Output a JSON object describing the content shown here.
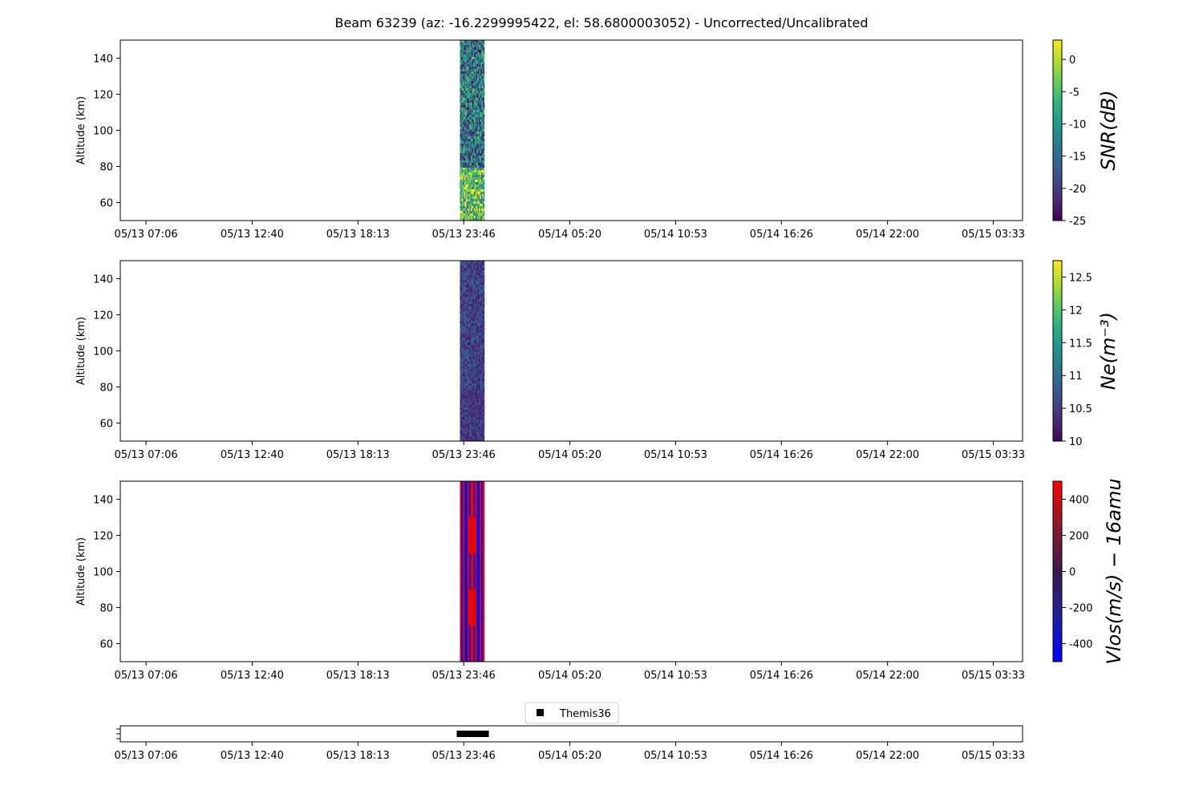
{
  "title": "Beam 63239 (az: -16.2299995422, el: 58.6800003052) - Uncorrected/Uncalibrated",
  "colors": {
    "background": "#ffffff",
    "axis": "#000000",
    "viridis": [
      "#440154",
      "#482878",
      "#3e4989",
      "#31688e",
      "#26828e",
      "#1f9e89",
      "#35b779",
      "#6ece58",
      "#b5de2b",
      "#fde725"
    ],
    "bwr_like": [
      "#0000ff",
      "#1f1f9e",
      "#3a1a4a",
      "#8a1a2a",
      "#ff0000"
    ]
  },
  "chart_data": [
    {
      "type": "heatmap",
      "name": "snr",
      "ylabel": "Altitude (km)",
      "ylim": [
        50,
        150
      ],
      "yticks": [
        60,
        80,
        100,
        120,
        140
      ],
      "xlim": [
        "05/13 05:45",
        "05/15 05:05"
      ],
      "xtick_labels": [
        "05/13 07:06",
        "05/13 12:40",
        "05/13 18:13",
        "05/13 23:46",
        "05/14 05:20",
        "05/14 10:53",
        "05/14 16:26",
        "05/14 22:00",
        "05/15 03:33"
      ],
      "data_time_range": [
        "05/13 23:34",
        "05/14 00:51"
      ],
      "colormap": "viridis",
      "colorbar_label": "SNR(dB)",
      "colorbar_range": [
        -25,
        3
      ],
      "colorbar_ticks": [
        0,
        -5,
        -10,
        -15,
        -20,
        -25
      ],
      "value_range": [
        -25,
        3
      ]
    },
    {
      "type": "heatmap",
      "name": "ne",
      "ylabel": "Altitude (km)",
      "ylim": [
        50,
        150
      ],
      "yticks": [
        60,
        80,
        100,
        120,
        140
      ],
      "xlim": [
        "05/13 05:45",
        "05/15 05:05"
      ],
      "xtick_labels": [
        "05/13 07:06",
        "05/13 12:40",
        "05/13 18:13",
        "05/13 23:46",
        "05/14 05:20",
        "05/14 10:53",
        "05/14 16:26",
        "05/14 22:00",
        "05/15 03:33"
      ],
      "data_time_range": [
        "05/13 23:34",
        "05/14 00:51"
      ],
      "colormap": "viridis",
      "colorbar_label": "Ne(m⁻³)",
      "colorbar_range": [
        10.0,
        12.75
      ],
      "colorbar_ticks": [
        12.5,
        12.0,
        11.5,
        11.0,
        10.5,
        10.0
      ],
      "value_range": [
        10.0,
        11.2
      ]
    },
    {
      "type": "heatmap",
      "name": "vlos",
      "ylabel": "Altitude (km)",
      "ylim": [
        50,
        150
      ],
      "yticks": [
        60,
        80,
        100,
        120,
        140
      ],
      "xlim": [
        "05/13 05:45",
        "05/15 05:05"
      ],
      "xtick_labels": [
        "05/13 07:06",
        "05/13 12:40",
        "05/13 18:13",
        "05/13 23:46",
        "05/14 05:20",
        "05/14 10:53",
        "05/14 16:26",
        "05/14 22:00",
        "05/15 03:33"
      ],
      "data_time_range": [
        "05/13 23:34",
        "05/14 00:51"
      ],
      "colormap": "bwr",
      "colorbar_label": "Vlos(m/s) − 16amu",
      "colorbar_range": [
        -500,
        500
      ],
      "colorbar_ticks": [
        400,
        200,
        0,
        -200,
        -400
      ],
      "value_range": [
        -500,
        500
      ]
    },
    {
      "type": "scatter",
      "name": "themis36",
      "legend": [
        {
          "label": "Themis36",
          "marker": "square",
          "color": "#000000"
        }
      ],
      "legend_position": "top-center",
      "xlim": [
        "05/13 05:45",
        "05/15 05:05"
      ],
      "xtick_labels": [
        "05/13 07:06",
        "05/13 12:40",
        "05/13 18:13",
        "05/13 23:46",
        "05/14 05:20",
        "05/14 10:53",
        "05/14 16:26",
        "05/14 22:00",
        "05/15 03:33"
      ],
      "series": [
        {
          "name": "Themis36",
          "x_range": [
            "05/13 23:34",
            "05/14 00:55"
          ],
          "y": 0
        }
      ]
    }
  ]
}
